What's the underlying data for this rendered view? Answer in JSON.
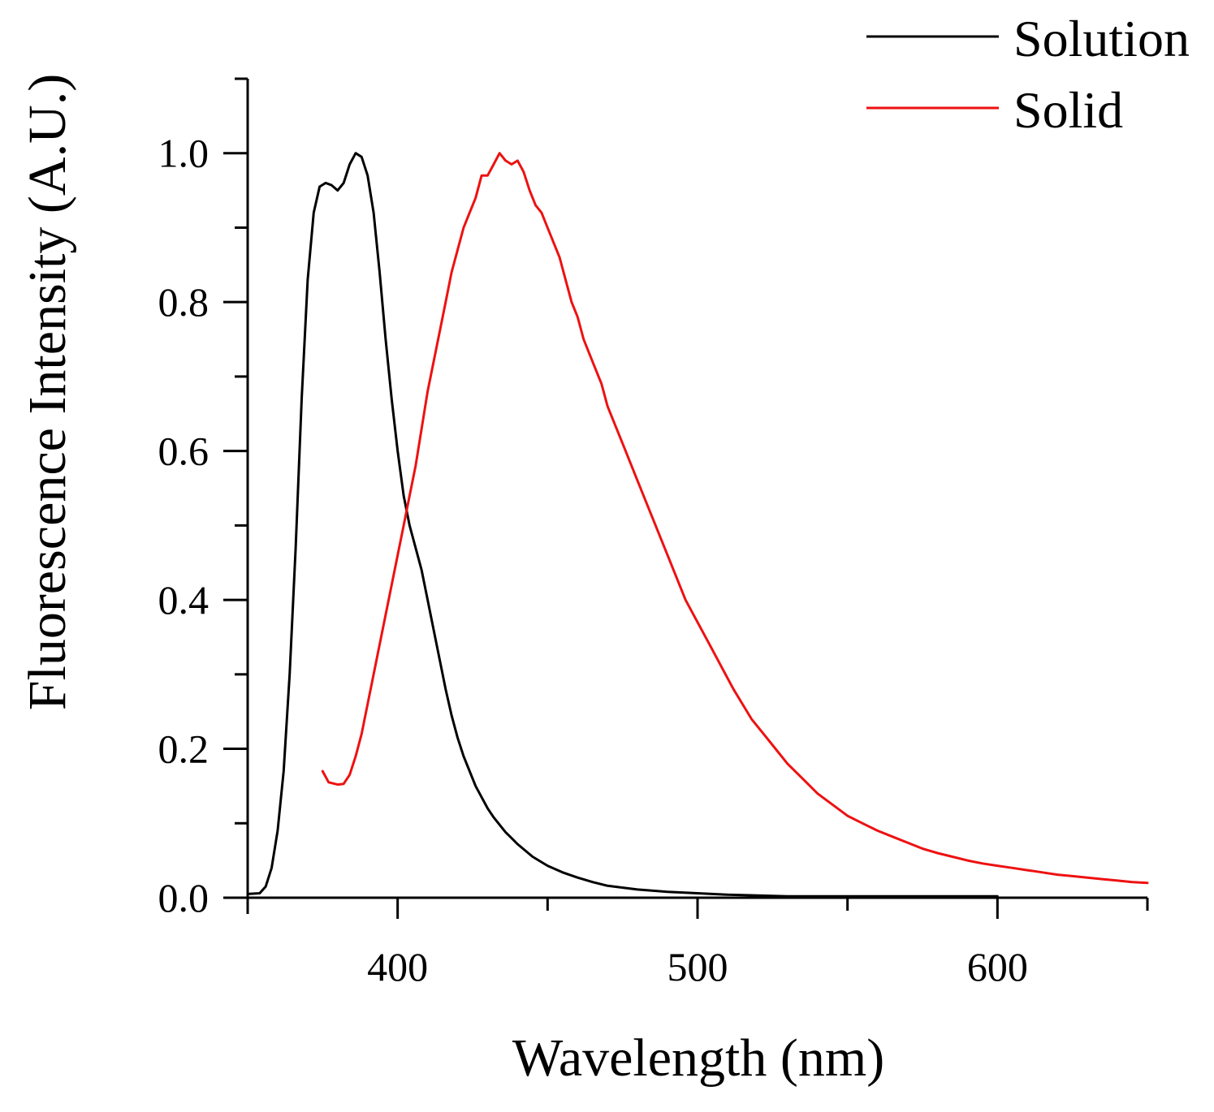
{
  "chart_data": {
    "type": "line",
    "title": "",
    "xlabel": "Wavelength (nm)",
    "ylabel": "Fluorescence Intensity (A.U.)",
    "xlim": [
      350,
      650
    ],
    "ylim": [
      0,
      1.1
    ],
    "x_ticks": [
      400,
      500,
      600
    ],
    "x_tick_labels": [
      "400",
      "500",
      "600"
    ],
    "x_minor_ticks": [
      350,
      450,
      550,
      650
    ],
    "y_ticks": [
      0.0,
      0.2,
      0.4,
      0.6,
      0.8,
      1.0
    ],
    "y_tick_labels": [
      "0.0",
      "0.2",
      "0.4",
      "0.6",
      "0.8",
      "1.0"
    ],
    "y_minor_ticks": [
      0.1,
      0.3,
      0.5,
      0.7,
      0.9,
      1.1
    ],
    "grid": false,
    "legend_position": "top-right",
    "series": [
      {
        "name": "Solution",
        "color": "#000000",
        "x": [
          350,
          354,
          356,
          358,
          360,
          362,
          364,
          366,
          368,
          370,
          372,
          374,
          376,
          378,
          380,
          382,
          384,
          386,
          388,
          390,
          392,
          394,
          396,
          398,
          400,
          402,
          404,
          406,
          408,
          410,
          412,
          414,
          416,
          418,
          420,
          422,
          424,
          426,
          428,
          430,
          432,
          434,
          436,
          438,
          440,
          445,
          450,
          455,
          460,
          465,
          470,
          480,
          490,
          500,
          510,
          520,
          530,
          540,
          550,
          560,
          570,
          580,
          590,
          600
        ],
        "values": [
          0.005,
          0.006,
          0.015,
          0.04,
          0.09,
          0.17,
          0.3,
          0.47,
          0.67,
          0.83,
          0.92,
          0.955,
          0.96,
          0.957,
          0.95,
          0.96,
          0.985,
          1.0,
          0.995,
          0.97,
          0.92,
          0.84,
          0.75,
          0.67,
          0.6,
          0.54,
          0.5,
          0.47,
          0.44,
          0.4,
          0.36,
          0.32,
          0.28,
          0.245,
          0.215,
          0.19,
          0.17,
          0.15,
          0.135,
          0.12,
          0.108,
          0.098,
          0.088,
          0.08,
          0.072,
          0.055,
          0.043,
          0.034,
          0.027,
          0.021,
          0.016,
          0.011,
          0.008,
          0.006,
          0.004,
          0.003,
          0.002,
          0.002,
          0.002,
          0.002,
          0.002,
          0.002,
          0.002,
          0.002
        ]
      },
      {
        "name": "Solid",
        "color": "#ee1111",
        "x": [
          375,
          377,
          380,
          382,
          384,
          386,
          388,
          390,
          392,
          394,
          396,
          398,
          400,
          402,
          404,
          406,
          408,
          410,
          412,
          414,
          416,
          418,
          420,
          422,
          424,
          426,
          428,
          430,
          432,
          434,
          436,
          438,
          440,
          442,
          444,
          446,
          448,
          450,
          452,
          454,
          456,
          458,
          460,
          462,
          465,
          468,
          470,
          473,
          476,
          480,
          484,
          488,
          492,
          496,
          500,
          504,
          508,
          512,
          515,
          518,
          522,
          526,
          530,
          535,
          540,
          545,
          550,
          555,
          560,
          565,
          570,
          575,
          580,
          585,
          590,
          595,
          600,
          605,
          610,
          615,
          620,
          625,
          630,
          635,
          640,
          645,
          650
        ],
        "values": [
          0.17,
          0.155,
          0.152,
          0.153,
          0.165,
          0.19,
          0.22,
          0.26,
          0.3,
          0.34,
          0.38,
          0.42,
          0.46,
          0.5,
          0.54,
          0.58,
          0.63,
          0.68,
          0.72,
          0.76,
          0.8,
          0.84,
          0.87,
          0.9,
          0.92,
          0.94,
          0.97,
          0.97,
          0.985,
          1.0,
          0.99,
          0.985,
          0.99,
          0.975,
          0.95,
          0.93,
          0.92,
          0.9,
          0.88,
          0.86,
          0.83,
          0.8,
          0.78,
          0.75,
          0.72,
          0.69,
          0.66,
          0.63,
          0.6,
          0.56,
          0.52,
          0.48,
          0.44,
          0.4,
          0.37,
          0.34,
          0.31,
          0.28,
          0.26,
          0.24,
          0.22,
          0.2,
          0.18,
          0.16,
          0.14,
          0.125,
          0.11,
          0.1,
          0.09,
          0.082,
          0.074,
          0.066,
          0.06,
          0.055,
          0.05,
          0.046,
          0.043,
          0.04,
          0.037,
          0.034,
          0.031,
          0.029,
          0.027,
          0.025,
          0.023,
          0.021,
          0.02
        ]
      }
    ]
  }
}
